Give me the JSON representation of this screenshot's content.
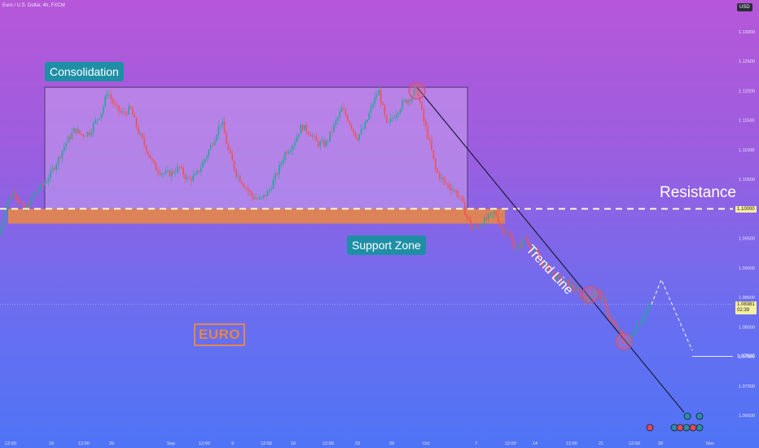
{
  "header": {
    "symbol": "Euro / U.S. Dollar, 4h, FXCM",
    "currency": "USD"
  },
  "annotations": {
    "consolidation": "Consolidation",
    "support_zone": "Support Zone",
    "resistance": "Resistance",
    "trend_line": "Trend Line",
    "watermark": "EURO"
  },
  "price_tags": {
    "resistance": "1.10000",
    "last_price": "1.08381",
    "countdown": "02:39",
    "target": "1.07500"
  },
  "colors": {
    "bull": "#26a69a",
    "bear": "#ef5350",
    "box_fill": "#c9a2ef",
    "support_zone": "#e5864a",
    "callout": "#1f8fa6",
    "grid": "#ffffff"
  },
  "chart_data": {
    "type": "candlestick",
    "title": "Euro / U.S. Dollar, 4h, FXCM",
    "y_axis": {
      "side": "right",
      "range": [
        1.0625,
        1.1325
      ],
      "tick_labels": [
        "1.13000",
        "1.12500",
        "1.12000",
        "1.11500",
        "1.11000",
        "1.10500",
        "1.09500",
        "1.09000",
        "1.08500",
        "1.08000",
        "1.07500",
        "1.07000",
        "1.06500"
      ]
    },
    "x_axis": {
      "tick_labels": [
        "12:00",
        "19",
        "12:00",
        "26",
        "Sep",
        "12:00",
        "9",
        "12:00",
        "16",
        "12:00",
        "23",
        "26",
        "Oct",
        "7",
        "12:00",
        "14",
        "12:00",
        "21",
        "12:00",
        "28",
        "Nov"
      ]
    },
    "price_path": [
      [
        0,
        1.0955
      ],
      [
        8,
        1.101
      ],
      [
        18,
        1.103
      ],
      [
        30,
        1.0995
      ],
      [
        42,
        1.1025
      ],
      [
        55,
        1.1045
      ],
      [
        62,
        1.106
      ],
      [
        70,
        1.108
      ],
      [
        80,
        1.111
      ],
      [
        92,
        1.1135
      ],
      [
        100,
        1.1125
      ],
      [
        110,
        1.113
      ],
      [
        118,
        1.115
      ],
      [
        125,
        1.1165
      ],
      [
        132,
        1.12
      ],
      [
        140,
        1.1175
      ],
      [
        150,
        1.116
      ],
      [
        160,
        1.117
      ],
      [
        170,
        1.113
      ],
      [
        180,
        1.11
      ],
      [
        190,
        1.107
      ],
      [
        200,
        1.106
      ],
      [
        210,
        1.106
      ],
      [
        220,
        1.107
      ],
      [
        230,
        1.105
      ],
      [
        240,
        1.1055
      ],
      [
        250,
        1.108
      ],
      [
        260,
        1.111
      ],
      [
        272,
        1.115
      ],
      [
        280,
        1.11
      ],
      [
        290,
        1.106
      ],
      [
        300,
        1.104
      ],
      [
        310,
        1.102
      ],
      [
        320,
        1.1015
      ],
      [
        330,
        1.103
      ],
      [
        340,
        1.106
      ],
      [
        350,
        1.1095
      ],
      [
        360,
        1.111
      ],
      [
        370,
        1.114
      ],
      [
        380,
        1.113
      ],
      [
        390,
        1.111
      ],
      [
        400,
        1.111
      ],
      [
        410,
        1.114
      ],
      [
        420,
        1.117
      ],
      [
        428,
        1.115
      ],
      [
        438,
        1.112
      ],
      [
        448,
        1.114
      ],
      [
        458,
        1.118
      ],
      [
        465,
        1.12
      ],
      [
        475,
        1.114
      ],
      [
        485,
        1.116
      ],
      [
        495,
        1.118
      ],
      [
        505,
        1.119
      ],
      [
        512,
        1.1205
      ],
      [
        520,
        1.115
      ],
      [
        528,
        1.111
      ],
      [
        535,
        1.1065
      ],
      [
        545,
        1.1045
      ],
      [
        555,
        1.1035
      ],
      [
        565,
        1.102
      ],
      [
        572,
        1.099
      ],
      [
        580,
        1.0965
      ],
      [
        590,
        1.0975
      ],
      [
        600,
        1.0985
      ],
      [
        608,
        1.0995
      ],
      [
        615,
        1.097
      ],
      [
        625,
        1.0955
      ],
      [
        635,
        1.093
      ],
      [
        645,
        1.095
      ],
      [
        655,
        1.093
      ],
      [
        665,
        1.091
      ],
      [
        675,
        1.0895
      ],
      [
        685,
        1.088
      ],
      [
        695,
        1.0875
      ],
      [
        705,
        1.0865
      ],
      [
        715,
        1.085
      ],
      [
        722,
        1.0845
      ],
      [
        728,
        1.086
      ],
      [
        735,
        1.086
      ],
      [
        742,
        1.084
      ],
      [
        750,
        1.081
      ],
      [
        758,
        1.0795
      ],
      [
        765,
        1.078
      ],
      [
        772,
        1.0775
      ],
      [
        780,
        1.08
      ],
      [
        788,
        1.0815
      ],
      [
        795,
        1.083
      ],
      [
        800,
        1.0838
      ]
    ],
    "resistance": 1.1,
    "support_zone": [
      1.0975,
      1.1
    ],
    "consolidation_box": {
      "x_range": [
        55,
        574
      ],
      "price_range": [
        1.0998,
        1.1206
      ]
    },
    "trend_line": {
      "from": [
        512,
        1.1206
      ],
      "to": [
        840,
        1.0655
      ]
    },
    "projection": [
      [
        800,
        1.0838
      ],
      [
        812,
        1.088
      ],
      [
        850,
        1.076
      ]
    ],
    "target_level": 1.075,
    "last_price": 1.08381,
    "circles": [
      [
        512,
        1.12
      ],
      [
        725,
        1.0855
      ],
      [
        766,
        1.0775
      ]
    ]
  }
}
